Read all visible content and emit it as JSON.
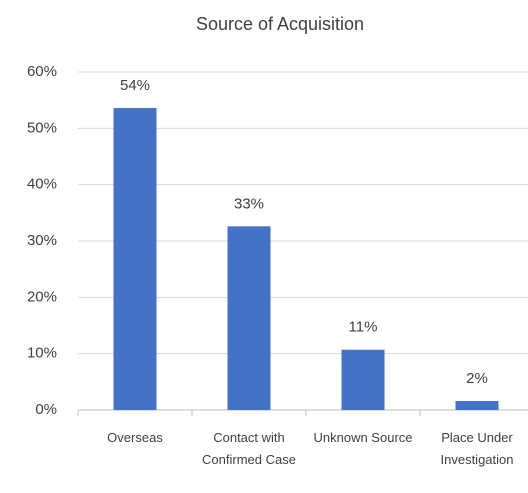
{
  "chart_data": {
    "type": "bar",
    "title": "Source of Acquisition",
    "categories": [
      "Overseas",
      "Contact with Confirmed Case",
      "Unknown Source",
      "Place Under Investigation"
    ],
    "values": [
      53.6,
      32.6,
      10.7,
      1.6
    ],
    "value_labels": [
      "54%",
      "33%",
      "11%",
      "2%"
    ],
    "color": "#4472c4",
    "ylim": [
      0,
      60
    ],
    "yticks": [
      {
        "value": 0,
        "label": "0%"
      },
      {
        "value": 10,
        "label": "10%"
      },
      {
        "value": 20,
        "label": "20%"
      },
      {
        "value": 30,
        "label": "30%"
      },
      {
        "value": 40,
        "label": "40%"
      },
      {
        "value": 50,
        "label": "50%"
      },
      {
        "value": 60,
        "label": "60%"
      }
    ],
    "grid": true
  }
}
